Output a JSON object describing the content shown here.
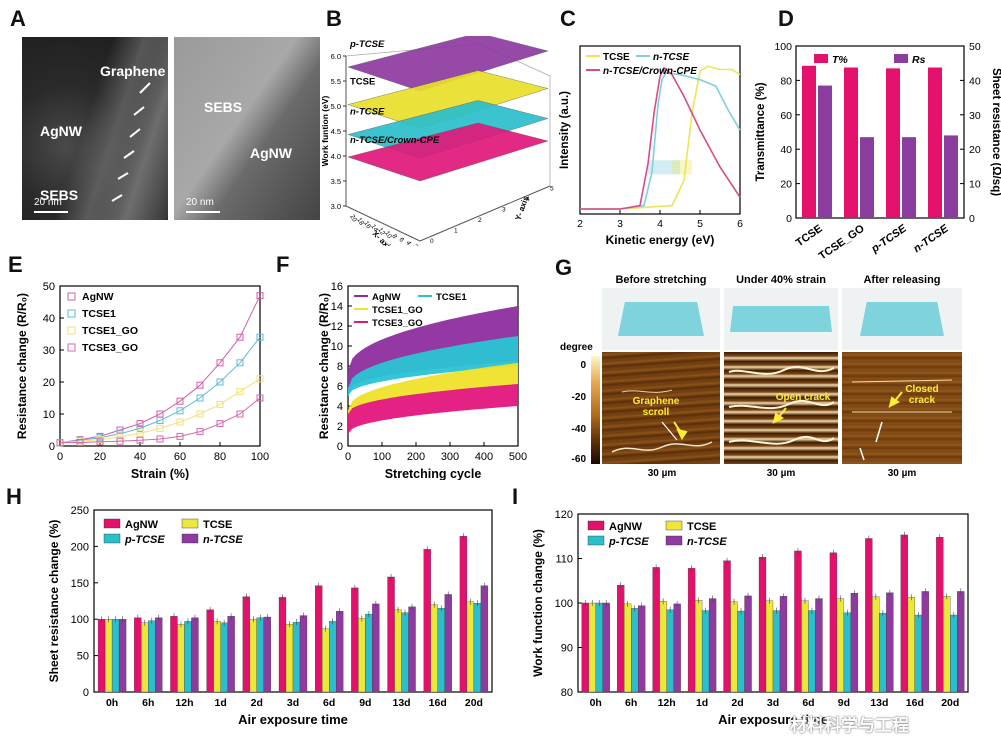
{
  "panel_labels": [
    "A",
    "B",
    "C",
    "D",
    "E",
    "F",
    "G",
    "H",
    "I"
  ],
  "panelA": {
    "left_labels": {
      "graphene": "Graphene",
      "agnw": "AgNW",
      "sebs": "SEBS",
      "scale": "20 nm"
    },
    "right_labels": {
      "sebs": "SEBS",
      "agnw": "AgNW",
      "scale": "20 nm"
    }
  },
  "panelG": {
    "titles": [
      "Before stretching",
      "Under 40% strain",
      "After releasing"
    ],
    "scales": [
      "30 µm",
      "30 µm",
      "30 µm"
    ],
    "annotations": [
      "Graphene\nscroll",
      "Open crack",
      "Closed\ncrack"
    ],
    "colorbar_title": "degree",
    "colorbar_ticks": [
      "0",
      "-20",
      "-40",
      "-60"
    ]
  },
  "watermark": "材料科学与工程",
  "chart_data": [
    {
      "id": "B",
      "type": "surface3d",
      "zlabel": "Work funtion (eV)",
      "xlabel": "X- axis",
      "ylabel": "Y- axis",
      "zticks": [
        "3.0",
        "3.5",
        "4.0",
        "4.5",
        "5.0",
        "5.5",
        "6.0"
      ],
      "xticks": [
        "20",
        "18",
        "16",
        "14",
        "12",
        "10",
        "8",
        "6",
        "4",
        "2",
        "0"
      ],
      "yticks": [
        "0",
        "1",
        "2",
        "3",
        "4",
        "5"
      ],
      "series": [
        {
          "name": "p-TCSE",
          "value": 5.9,
          "color": "#8e3aa0"
        },
        {
          "name": "TCSE",
          "value": 5.15,
          "color": "#e9df2a"
        },
        {
          "name": "n-TCSE",
          "value": 4.55,
          "color": "#2bbfcc"
        },
        {
          "name": "n-TCSE/Crown-CPE",
          "value": 4.1,
          "color": "#e0197a"
        }
      ]
    },
    {
      "id": "C",
      "type": "line",
      "xlabel": "Kinetic energy (eV)",
      "ylabel": "Intensity (a.u.)",
      "xlim": [
        2,
        6
      ],
      "xticks": [
        "2",
        "3",
        "4",
        "5",
        "6"
      ],
      "legend": [
        "TCSE",
        "n-TCSE",
        "n-TCSE/Crown-CPE"
      ],
      "colors": [
        "#ece45a",
        "#7fcfe0",
        "#d84b86"
      ],
      "series": [
        {
          "name": "TCSE",
          "x": [
            2.0,
            3.0,
            4.3,
            4.6,
            4.8,
            5.0,
            5.2,
            5.5,
            5.8,
            6.0
          ],
          "y": [
            0.03,
            0.03,
            0.05,
            0.2,
            0.6,
            0.85,
            0.88,
            0.86,
            0.86,
            0.83
          ]
        },
        {
          "name": "n-TCSE",
          "x": [
            2.0,
            3.0,
            3.6,
            3.8,
            3.95,
            4.05,
            4.15,
            4.5,
            5.0,
            5.4,
            5.7,
            6.0
          ],
          "y": [
            0.03,
            0.03,
            0.05,
            0.25,
            0.65,
            0.8,
            0.84,
            0.83,
            0.8,
            0.76,
            0.62,
            0.5
          ]
        },
        {
          "name": "n-TCSE/Crown-CPE",
          "x": [
            2.0,
            3.0,
            3.5,
            3.7,
            3.85,
            4.0,
            4.1,
            4.3,
            4.6,
            5.0,
            5.5,
            6.0
          ],
          "y": [
            0.03,
            0.03,
            0.05,
            0.3,
            0.6,
            0.82,
            0.87,
            0.83,
            0.7,
            0.5,
            0.28,
            0.1
          ]
        }
      ]
    },
    {
      "id": "D",
      "type": "bar",
      "categories": [
        "TCSE",
        "TCSE_GO",
        "p-TCSE",
        "n-TCSE"
      ],
      "series": [
        {
          "name": "T%",
          "axis": "left",
          "values": [
            88.5,
            87.5,
            87,
            87.5
          ],
          "color": "#e3116c"
        },
        {
          "name": "Rs",
          "axis": "right",
          "values": [
            38.5,
            23.5,
            23.5,
            24
          ],
          "color": "#8a3d9c"
        }
      ],
      "ylabel": "Transmittance (%)",
      "ylim": [
        0,
        100
      ],
      "y2label": "Sheet resistance (Ω/sq)",
      "y2lim": [
        0,
        50
      ],
      "yticks": [
        "0",
        "20",
        "40",
        "60",
        "80",
        "100"
      ],
      "y2ticks": [
        "0",
        "10",
        "20",
        "30",
        "40",
        "50"
      ]
    },
    {
      "id": "E",
      "type": "line",
      "xlabel": "Strain (%)",
      "ylabel": "Resistance change (R/R₀)",
      "xlim": [
        0,
        100
      ],
      "ylim": [
        0,
        50
      ],
      "xticks": [
        "0",
        "20",
        "40",
        "60",
        "80",
        "100"
      ],
      "yticks": [
        "0",
        "10",
        "20",
        "30",
        "40",
        "50"
      ],
      "x": [
        0,
        10,
        20,
        30,
        40,
        50,
        60,
        70,
        80,
        90,
        100
      ],
      "series": [
        {
          "name": "AgNW",
          "color": "#d45fa6",
          "values": [
            1,
            2,
            3,
            5,
            7,
            10,
            14,
            19,
            26,
            34,
            47
          ]
        },
        {
          "name": "TCSE1",
          "color": "#63b8d9",
          "values": [
            1,
            1.8,
            2.6,
            3.8,
            5.5,
            8,
            11,
            15,
            20,
            26,
            34
          ]
        },
        {
          "name": "TCSE1_GO",
          "color": "#f2e27a",
          "values": [
            1,
            1.5,
            2,
            2.8,
            4,
            5.5,
            7.5,
            10,
            13,
            17,
            21
          ]
        },
        {
          "name": "TCSE3_GO",
          "color": "#d468a8",
          "values": [
            1,
            1.1,
            1.3,
            1.5,
            1.8,
            2.2,
            3,
            4.5,
            7,
            10,
            15
          ]
        }
      ]
    },
    {
      "id": "F",
      "type": "area",
      "xlabel": "Stretching cycle",
      "ylabel": "Resistance change (R/R₀)",
      "xlim": [
        0,
        500
      ],
      "ylim": [
        0,
        16
      ],
      "xticks": [
        "0",
        "100",
        "200",
        "300",
        "400",
        "500"
      ],
      "yticks": [
        "0",
        "2",
        "4",
        "6",
        "8",
        "10",
        "12",
        "14",
        "16"
      ],
      "legend": [
        "AgNW",
        "TCSE1",
        "TCSE1_GO",
        "TCSE3_GO"
      ],
      "series": [
        {
          "name": "AgNW",
          "color": "#8e2e9e",
          "lower_start": 5.5,
          "lower_end": 8.5,
          "upper_start": 7.5,
          "upper_end": 14
        },
        {
          "name": "TCSE1",
          "color": "#2ac3d4",
          "lower_start": 5.0,
          "lower_end": 8.0,
          "upper_start": 5.8,
          "upper_end": 11
        },
        {
          "name": "TCSE1_GO",
          "color": "#f0e22a",
          "lower_start": 3.0,
          "lower_end": 6.2,
          "upper_start": 3.6,
          "upper_end": 8.3
        },
        {
          "name": "TCSE3_GO",
          "color": "#e2167c",
          "lower_start": 1.2,
          "lower_end": 4.0,
          "upper_start": 3.2,
          "upper_end": 6.2
        }
      ]
    },
    {
      "id": "H",
      "type": "bar",
      "xlabel": "Air exposure time",
      "ylabel": "Sheet resistance change (%)",
      "ylim": [
        0,
        250
      ],
      "yticks": [
        "0",
        "50",
        "100",
        "150",
        "200",
        "250"
      ],
      "categories": [
        "0h",
        "6h",
        "12h",
        "1d",
        "2d",
        "3d",
        "6d",
        "9d",
        "13d",
        "16d",
        "20d"
      ],
      "series": [
        {
          "name": "AgNW",
          "color": "#e3116c",
          "values": [
            100,
            102,
            104,
            113,
            131,
            130,
            146,
            143,
            158,
            196,
            214
          ]
        },
        {
          "name": "TCSE",
          "color": "#ece73a",
          "values": [
            100,
            95,
            93,
            97,
            100,
            93,
            87,
            101,
            113,
            120,
            124
          ]
        },
        {
          "name": "p-TCSE",
          "color": "#2bbfcc",
          "values": [
            100,
            98,
            97,
            95,
            102,
            96,
            97,
            107,
            109,
            115,
            122
          ]
        },
        {
          "name": "n-TCSE",
          "color": "#8e3aa0",
          "values": [
            100,
            102,
            102,
            104,
            103,
            105,
            111,
            121,
            117,
            134,
            146
          ]
        }
      ]
    },
    {
      "id": "I",
      "type": "bar",
      "xlabel": "Air exposure time",
      "ylabel": "Work function change (%)",
      "ylim": [
        80,
        120
      ],
      "yticks": [
        "80",
        "90",
        "100",
        "110",
        "120"
      ],
      "categories": [
        "0h",
        "6h",
        "12h",
        "1d",
        "2d",
        "3d",
        "6d",
        "9d",
        "13d",
        "16d",
        "20d"
      ],
      "series": [
        {
          "name": "AgNW",
          "color": "#e3116c",
          "values": [
            100,
            104,
            108,
            107.8,
            109.5,
            110.3,
            111.7,
            111.3,
            114.5,
            115.3,
            114.8
          ]
        },
        {
          "name": "TCSE",
          "color": "#ece73a",
          "values": [
            100,
            99.8,
            100.4,
            100.6,
            100.3,
            100.5,
            100.5,
            101,
            101.4,
            101.3,
            101.5
          ]
        },
        {
          "name": "p-TCSE",
          "color": "#2bbfcc",
          "values": [
            100,
            98.8,
            98.5,
            98.3,
            98.2,
            98.3,
            98.3,
            97.8,
            97.7,
            97.3,
            97.3
          ]
        },
        {
          "name": "n-TCSE",
          "color": "#8e3aa0",
          "values": [
            100,
            99.4,
            99.8,
            101,
            101.6,
            101.5,
            101,
            102.2,
            102.3,
            102.6,
            102.6
          ]
        }
      ]
    }
  ]
}
